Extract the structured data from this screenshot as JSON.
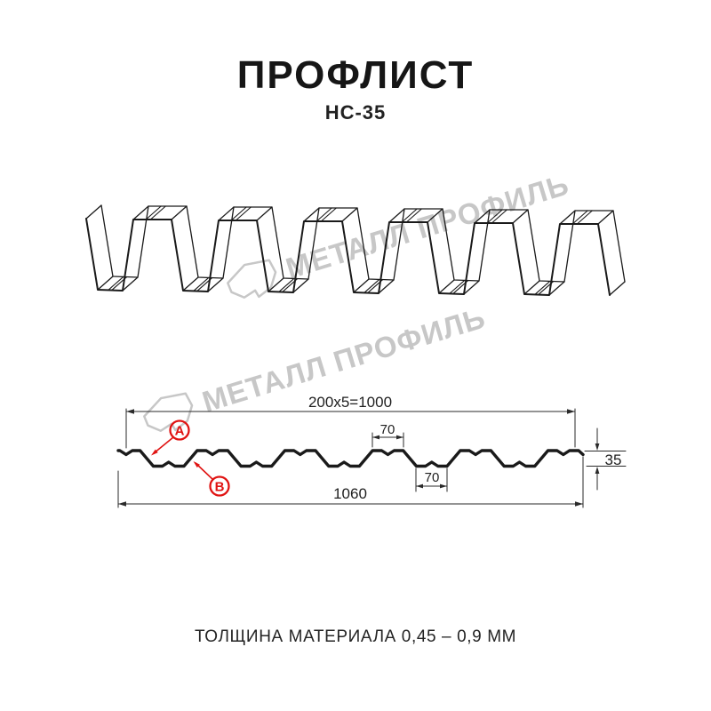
{
  "header": {
    "title": "ПРОФЛИСТ",
    "subtitle": "НС-35"
  },
  "watermark": {
    "brand": "МЕТАЛЛ ПРОФИЛЬ"
  },
  "drawing": {
    "dimensions": {
      "pitch_formula": "200x5=1000",
      "crest_width": "70",
      "trough_width": "70",
      "height": "35",
      "total_width": "1060"
    },
    "callouts": {
      "a": "А",
      "b": "В"
    },
    "colors": {
      "line": "#1a1a1a",
      "dimension": "#2a2a2a",
      "red": "#e01312",
      "watermark": "#c7c7c7"
    }
  },
  "footer": {
    "note": "ТОЛЩИНА МАТЕРИАЛА 0,45 – 0,9 ММ"
  }
}
